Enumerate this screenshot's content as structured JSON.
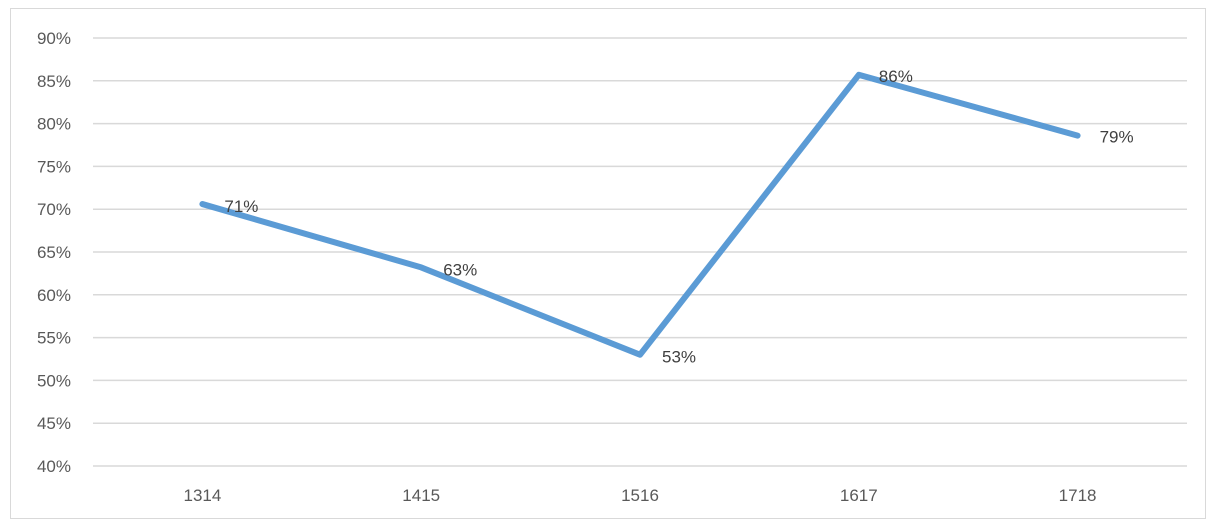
{
  "chart_data": {
    "type": "line",
    "title": "",
    "xlabel": "",
    "ylabel": "",
    "categories": [
      "1314",
      "1415",
      "1516",
      "1617",
      "1718"
    ],
    "series": [
      {
        "values": [
          70.6,
          63.2,
          53.0,
          85.7,
          78.6
        ],
        "data_labels": [
          "71%",
          "63%",
          "53%",
          "86%",
          "79%"
        ],
        "color": "#5b9bd5"
      }
    ],
    "ylim": [
      40,
      90
    ],
    "y_ticks": [
      {
        "value": 90,
        "label": "90%"
      },
      {
        "value": 85,
        "label": "85%"
      },
      {
        "value": 80,
        "label": "80%"
      },
      {
        "value": 75,
        "label": "75%"
      },
      {
        "value": 70,
        "label": "70%"
      },
      {
        "value": 65,
        "label": "65%"
      },
      {
        "value": 60,
        "label": "60%"
      },
      {
        "value": 55,
        "label": "55%"
      },
      {
        "value": 50,
        "label": "50%"
      },
      {
        "value": 45,
        "label": "45%"
      },
      {
        "value": 40,
        "label": "40%"
      }
    ],
    "grid": true,
    "gridline_color": "#d9d9d9",
    "legend": "none"
  }
}
